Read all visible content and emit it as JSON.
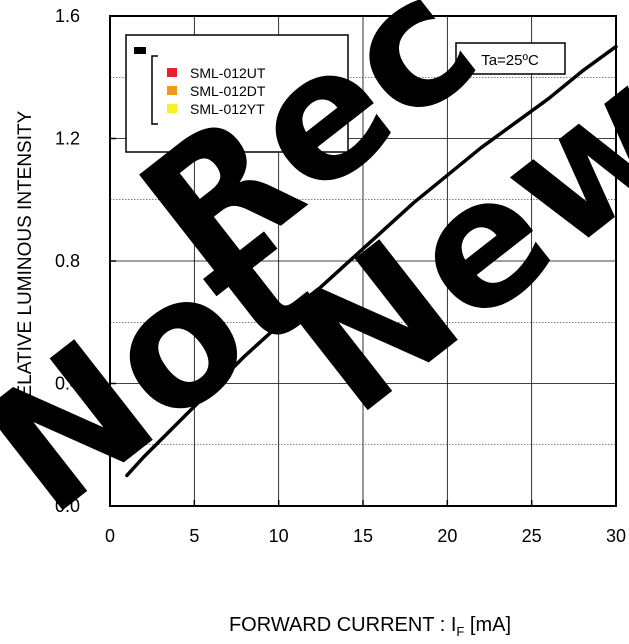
{
  "chart_data": {
    "type": "line",
    "xlabel_main": "FORWARD CURRENT : I",
    "xlabel_sub": "F",
    "xlabel_unit": " [mA]",
    "ylabel": "RELATIVE LUMINOUS INTENSITY",
    "xlim": [
      0,
      30
    ],
    "ylim": [
      0,
      1.6
    ],
    "x_ticks": [
      "0",
      "5",
      "10",
      "15",
      "20",
      "25",
      "30"
    ],
    "y_ticks": [
      "0.0",
      "0.4",
      "0.8",
      "1.2",
      "1.6"
    ],
    "y_grid": [
      0.2,
      0.4,
      0.6,
      0.8,
      1.0,
      1.2,
      1.4
    ],
    "x_grid": [
      5,
      10,
      15,
      20,
      25
    ],
    "grid": true,
    "annotation": "Ta=25ºC",
    "legend_position": "top-left",
    "legend": {
      "marker_color": "#000000",
      "entries": [
        {
          "name": "SML-012UT",
          "color": "#e8202a"
        },
        {
          "name": "SML-012DT",
          "color": "#f29a17"
        },
        {
          "name": "SML-012YT",
          "color": "#f7ef28"
        }
      ]
    },
    "series": [
      {
        "color": "#000000",
        "x": [
          1,
          2,
          4,
          6,
          8,
          10,
          12,
          14,
          16,
          18,
          20,
          22,
          24,
          26,
          28,
          30
        ],
        "y": [
          0.1,
          0.16,
          0.27,
          0.38,
          0.49,
          0.59,
          0.69,
          0.79,
          0.89,
          0.99,
          1.08,
          1.17,
          1.25,
          1.33,
          1.42,
          1.5
        ]
      }
    ]
  },
  "watermark": {
    "text_1": "Not",
    "text_2": "Rec",
    "text_3": "New",
    "color": "#000000"
  }
}
